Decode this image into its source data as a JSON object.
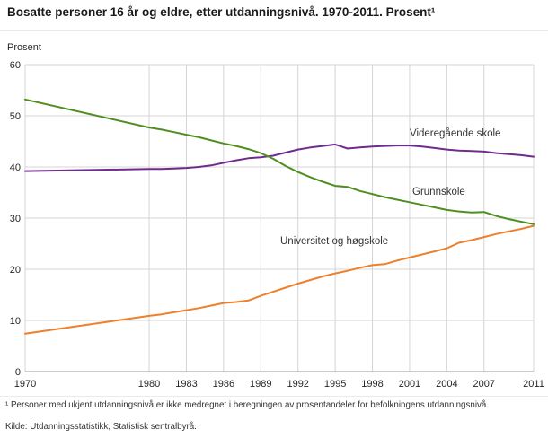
{
  "page": {
    "title": "Bosatte personer 16 år og eldre, etter utdanningsnivå. 1970-2011. Prosent¹",
    "y_axis_title": "Prosent",
    "footnote": "¹ Personer med ukjent utdanningsnivå er ikke medregnet i beregningen av prosentandeler for befolkningens utdanningsnivå.",
    "source": "Kilde: Utdanningsstatistikk, Statistisk sentralbyrå."
  },
  "chart_data": {
    "type": "line",
    "title": "Bosatte personer 16 år og eldre, etter utdanningsnivå. 1970-2011. Prosent",
    "xlabel": "",
    "ylabel": "Prosent",
    "ylim": [
      0,
      60
    ],
    "yticks": [
      0,
      10,
      20,
      30,
      40,
      50,
      60
    ],
    "xticks": [
      1970,
      1980,
      1983,
      1986,
      1989,
      1992,
      1995,
      1998,
      2001,
      2004,
      2007,
      2011
    ],
    "grid": true,
    "legend_position": "inline-labels",
    "x_years": [
      1970,
      1980,
      1981,
      1982,
      1983,
      1984,
      1985,
      1986,
      1987,
      1988,
      1989,
      1990,
      1991,
      1992,
      1993,
      1994,
      1995,
      1996,
      1997,
      1998,
      1999,
      2000,
      2001,
      2002,
      2003,
      2004,
      2005,
      2006,
      2007,
      2008,
      2009,
      2010,
      2011
    ],
    "series": [
      {
        "name": "Videregående skole",
        "color": "#6e2c8e",
        "values": [
          39.2,
          39.6,
          39.6,
          39.7,
          39.8,
          40.0,
          40.3,
          40.8,
          41.3,
          41.7,
          41.9,
          42.2,
          42.8,
          43.4,
          43.8,
          44.1,
          44.4,
          43.6,
          43.8,
          44.0,
          44.1,
          44.2,
          44.2,
          44.0,
          43.7,
          43.4,
          43.2,
          43.1,
          43.0,
          42.7,
          42.5,
          42.3,
          42.0
        ]
      },
      {
        "name": "Grunnskole",
        "color": "#4f8f20",
        "values": [
          53.2,
          47.7,
          47.3,
          46.8,
          46.3,
          45.8,
          45.2,
          44.6,
          44.1,
          43.5,
          42.7,
          41.6,
          40.2,
          39.0,
          38.0,
          37.1,
          36.3,
          36.1,
          35.3,
          34.7,
          34.1,
          33.6,
          33.1,
          32.6,
          32.1,
          31.6,
          31.3,
          31.1,
          31.2,
          30.4,
          29.8,
          29.3,
          28.8
        ]
      },
      {
        "name": "Universitet og høgskole",
        "color": "#ee7f2d",
        "values": [
          7.4,
          10.9,
          11.2,
          11.6,
          12.0,
          12.4,
          12.9,
          13.4,
          13.6,
          13.9,
          14.8,
          15.6,
          16.4,
          17.2,
          17.9,
          18.6,
          19.2,
          19.7,
          20.3,
          20.8,
          21.0,
          21.7,
          22.3,
          22.9,
          23.5,
          24.1,
          25.2,
          25.7,
          26.3,
          26.9,
          27.4,
          27.9,
          28.5
        ]
      }
    ]
  }
}
